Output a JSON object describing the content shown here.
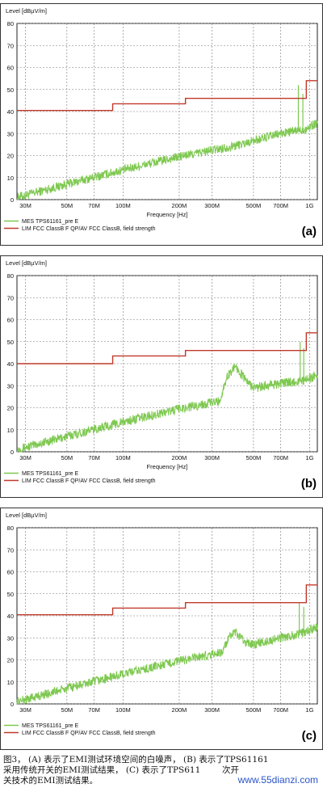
{
  "chart_data": [
    {
      "type": "line",
      "panel_label": "(a)",
      "ylabel": "Level [dBµV/m]",
      "xlabel": "Frequency [Hz]",
      "x_scale": "log",
      "xlim": [
        27000000,
        1100000000
      ],
      "ylim": [
        0,
        80
      ],
      "y_ticks": [
        0,
        10,
        20,
        30,
        40,
        50,
        60,
        70,
        80
      ],
      "x_ticks": [
        {
          "value": 30000000,
          "label": "30M"
        },
        {
          "value": 50000000,
          "label": "50M"
        },
        {
          "value": 70000000,
          "label": "70M"
        },
        {
          "value": 100000000,
          "label": "100M"
        },
        {
          "value": 200000000,
          "label": "200M"
        },
        {
          "value": 300000000,
          "label": "300M"
        },
        {
          "value": 500000000,
          "label": "500M"
        },
        {
          "value": 700000000,
          "label": "700M"
        },
        {
          "value": 1000000000,
          "label": "1G"
        }
      ],
      "grid": true,
      "series": [
        {
          "name": "MES  TPS61161_pre E",
          "color": "#7ec850",
          "x": [
            27000000,
            50000000,
            100000000,
            200000000,
            400000000,
            700000000,
            950000000,
            1100000000
          ],
          "y": [
            1,
            7,
            13.5,
            19.5,
            24.5,
            30,
            32,
            35
          ],
          "spikes": [
            {
              "x": 870000000,
              "y": 52
            },
            {
              "x": 920000000,
              "y": 48
            }
          ]
        },
        {
          "name": "LIM  FCC ClassB F QP/AV    FCC ClassB, field strength",
          "color": "#c0392b",
          "x": [
            27000000,
            88000000,
            88000000,
            216000000,
            216000000,
            960000000,
            960000000,
            1100000000
          ],
          "y": [
            40.5,
            40.5,
            43.5,
            43.5,
            46,
            46,
            54,
            54
          ]
        }
      ]
    },
    {
      "type": "line",
      "panel_label": "(b)",
      "ylabel": "Level [dBµV/m]",
      "xlabel": "Frequency [Hz]",
      "x_scale": "log",
      "xlim": [
        27000000,
        1100000000
      ],
      "ylim": [
        0,
        80
      ],
      "y_ticks": [
        0,
        10,
        20,
        30,
        40,
        50,
        60,
        70,
        80
      ],
      "x_ticks": [
        {
          "value": 30000000,
          "label": "30M"
        },
        {
          "value": 50000000,
          "label": "50M"
        },
        {
          "value": 70000000,
          "label": "70M"
        },
        {
          "value": 100000000,
          "label": "100M"
        },
        {
          "value": 200000000,
          "label": "200M"
        },
        {
          "value": 300000000,
          "label": "300M"
        },
        {
          "value": 500000000,
          "label": "500M"
        },
        {
          "value": 700000000,
          "label": "700M"
        },
        {
          "value": 1000000000,
          "label": "1G"
        }
      ],
      "grid": true,
      "series": [
        {
          "name": "MES  TPS61161_pre E",
          "color": "#7ec850",
          "x": [
            27000000,
            50000000,
            100000000,
            200000000,
            330000000,
            360000000,
            400000000,
            450000000,
            500000000,
            700000000,
            950000000,
            1100000000
          ],
          "y": [
            1,
            7,
            13.5,
            19.5,
            23,
            34,
            39,
            33,
            29,
            31,
            32.5,
            35
          ],
          "spikes": [
            {
              "x": 890000000,
              "y": 50
            },
            {
              "x": 930000000,
              "y": 47
            }
          ]
        },
        {
          "name": "LIM  FCC ClassB F QP/AV    FCC ClassB, field strength",
          "color": "#c0392b",
          "x": [
            27000000,
            88000000,
            88000000,
            216000000,
            216000000,
            960000000,
            960000000,
            1100000000
          ],
          "y": [
            40,
            40,
            43.5,
            43.5,
            46,
            46,
            54,
            54
          ]
        }
      ]
    },
    {
      "type": "line",
      "panel_label": "(c)",
      "ylabel": "Level [dBµV/m]",
      "xlabel": "",
      "x_scale": "log",
      "xlim": [
        27000000,
        1100000000
      ],
      "ylim": [
        0,
        80
      ],
      "y_ticks": [
        0,
        10,
        20,
        30,
        40,
        50,
        60,
        70,
        80
      ],
      "x_ticks": [
        {
          "value": 30000000,
          "label": "30M"
        },
        {
          "value": 50000000,
          "label": "50M"
        },
        {
          "value": 70000000,
          "label": "70M"
        },
        {
          "value": 100000000,
          "label": "100M"
        },
        {
          "value": 200000000,
          "label": "200M"
        },
        {
          "value": 300000000,
          "label": "300M"
        },
        {
          "value": 500000000,
          "label": "500M"
        },
        {
          "value": 700000000,
          "label": "700M"
        },
        {
          "value": 1000000000,
          "label": "1G"
        }
      ],
      "grid": true,
      "series": [
        {
          "name": "MES  TPS61161_pre E",
          "color": "#7ec850",
          "x": [
            27000000,
            50000000,
            100000000,
            200000000,
            340000000,
            370000000,
            400000000,
            450000000,
            500000000,
            700000000,
            950000000,
            1100000000
          ],
          "y": [
            1,
            7,
            13.5,
            19.5,
            23.5,
            30,
            32.5,
            28,
            27,
            30,
            32.5,
            35
          ],
          "spikes": [
            {
              "x": 880000000,
              "y": 46
            },
            {
              "x": 930000000,
              "y": 44
            }
          ]
        },
        {
          "name": "LIM  FCC ClassB F QP/AV    FCC ClassB, field strength",
          "color": "#c0392b",
          "x": [
            27000000,
            88000000,
            88000000,
            216000000,
            216000000,
            960000000,
            960000000,
            1100000000
          ],
          "y": [
            40.5,
            40.5,
            43.5,
            43.5,
            46,
            46,
            54,
            54
          ]
        }
      ]
    }
  ],
  "caption": {
    "line1": "图3， (A) 表示了EMI测试环境空间的白噪声， (B) 表示了TPS61161",
    "line2": "采用传统开关的EMI测试结果， (C) 表示了TPS611        次开",
    "line3": "关技术的EMI测试结果。"
  },
  "watermark": "www.55dianzi.com"
}
